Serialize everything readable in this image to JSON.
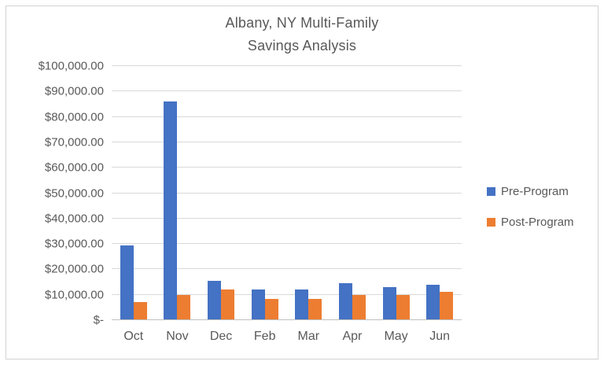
{
  "chart_data": {
    "type": "bar",
    "title": "Albany, NY Multi-Family Savings Analysis",
    "title_lines": [
      "Albany, NY Multi-Family",
      "Savings Analysis"
    ],
    "categories": [
      "Oct",
      "Nov",
      "Dec",
      "Feb",
      "Mar",
      "Apr",
      "May",
      "Jun"
    ],
    "series": [
      {
        "name": "Pre-Program",
        "color": "#4472C4",
        "values": [
          29500,
          86000,
          15500,
          12000,
          12000,
          14500,
          13000,
          14000
        ]
      },
      {
        "name": "Post-Program",
        "color": "#ED7D31",
        "values": [
          7000,
          10000,
          12000,
          8500,
          8500,
          10000,
          10000,
          11000
        ]
      }
    ],
    "y_axis": {
      "min": 0,
      "max": 100000,
      "step": 10000,
      "tick_labels": [
        "$-",
        "$10,000.00",
        "$20,000.00",
        "$30,000.00",
        "$40,000.00",
        "$50,000.00",
        "$60,000.00",
        "$70,000.00",
        "$80,000.00",
        "$90,000.00",
        "$100,000.00"
      ]
    },
    "xlabel": "",
    "ylabel": "",
    "grid": true,
    "legend_position": "right"
  },
  "colors": {
    "title_text": "#595959",
    "axis_text": "#595959",
    "gridline": "#d9d9d9",
    "axis_line": "#bfbfbf",
    "chart_border": "#d2d2d2",
    "background": "#ffffff"
  }
}
